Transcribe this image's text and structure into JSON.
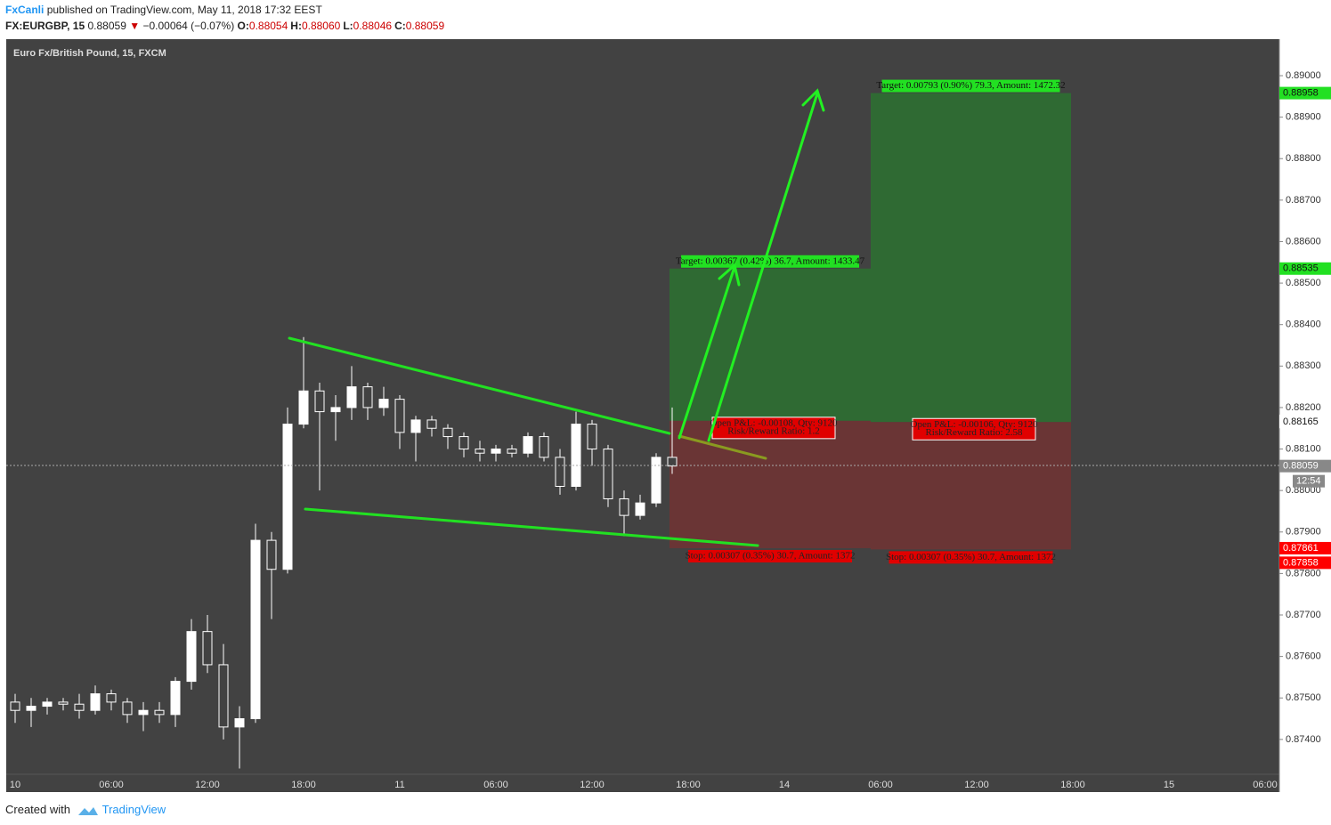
{
  "header": {
    "author": "FxCanli",
    "published": "published on TradingView.com, May 11, 2018 17:32 EEST",
    "symbol": "FX:EURGBP, 15",
    "price": "0.88059",
    "arrow": "▼",
    "change": "−0.00064 (−0.07%)",
    "ohlc": [
      {
        "label": "O:",
        "value": "0.88054"
      },
      {
        "label": "H:",
        "value": "0.88060"
      },
      {
        "label": "L:",
        "value": "0.88046"
      },
      {
        "label": "C:",
        "value": "0.88059"
      }
    ]
  },
  "footer": {
    "created": "Created with",
    "brand": "TradingView"
  },
  "chart_data": {
    "type": "candlestick",
    "legend": "Euro Fx/British Pound, 15, FXCM",
    "countdown": "12:54",
    "up_color": "#ffffff",
    "down_color": "#424242",
    "categories": [
      "10",
      null,
      null,
      null,
      null,
      null,
      "06:00",
      null,
      null,
      null,
      null,
      null,
      "12:00",
      null,
      null,
      null,
      null,
      null,
      "18:00",
      null,
      null,
      null,
      null,
      null,
      "11",
      null,
      null,
      null,
      null,
      null,
      "06:00",
      null,
      null,
      null,
      null,
      null,
      "12:00",
      null,
      null,
      null,
      null,
      null,
      "18:00",
      null,
      null,
      null,
      null,
      null,
      "14",
      null,
      null,
      null,
      null,
      null,
      "06:00",
      null,
      null,
      null,
      null,
      null,
      "12:00",
      null,
      null,
      null,
      null,
      null,
      "18:00",
      null,
      null,
      null,
      null,
      null,
      "15",
      null,
      null,
      null,
      null,
      null,
      "06:00"
    ],
    "open": [
      0.8749,
      0.8747,
      0.8748,
      0.8749,
      0.87485,
      0.8747,
      0.8751,
      0.8749,
      0.8746,
      0.8747,
      0.8746,
      0.8754,
      0.8766,
      0.8758,
      0.8743,
      0.8745,
      0.8788,
      0.8781,
      0.8816,
      0.8824,
      0.8819,
      0.882,
      0.8825,
      0.882,
      0.8822,
      0.8814,
      0.8817,
      0.8815,
      0.8813,
      0.881,
      0.8809,
      0.881,
      0.8809,
      0.8813,
      0.8808,
      0.8801,
      0.8816,
      0.881,
      0.8798,
      0.8794,
      0.8797,
      0.8808,
      null,
      null,
      null,
      null,
      null,
      null,
      null,
      null,
      null,
      null,
      null,
      null,
      null,
      null,
      null,
      null,
      null,
      null,
      null,
      null,
      null,
      null,
      null,
      null,
      null,
      null,
      null,
      null,
      null,
      null,
      null,
      null,
      null,
      null,
      null,
      null,
      null
    ],
    "high": [
      0.8751,
      0.875,
      0.875,
      0.875,
      0.8751,
      0.8753,
      0.8752,
      0.875,
      0.8749,
      0.8749,
      0.8755,
      0.8769,
      0.877,
      0.8763,
      0.8748,
      0.8792,
      0.879,
      0.882,
      0.8837,
      0.8826,
      0.8823,
      0.883,
      0.8826,
      0.8825,
      0.8823,
      0.8818,
      0.8818,
      0.8816,
      0.8814,
      0.8812,
      0.8811,
      0.8811,
      0.8814,
      0.8814,
      0.881,
      0.8819,
      0.8817,
      0.8811,
      0.88,
      0.8799,
      0.8809,
      0.882,
      null,
      null,
      null,
      null,
      null,
      null,
      null,
      null,
      null,
      null,
      null,
      null,
      null,
      null,
      null,
      null,
      null,
      null,
      null,
      null,
      null,
      null,
      null,
      null,
      null,
      null,
      null,
      null,
      null,
      null,
      null,
      null,
      null,
      null,
      null,
      null,
      null
    ],
    "low": [
      0.8744,
      0.8743,
      0.8746,
      0.8747,
      0.8745,
      0.8746,
      0.8747,
      0.8744,
      0.8742,
      0.8744,
      0.8743,
      0.8752,
      0.8756,
      0.874,
      0.8733,
      0.8744,
      0.8769,
      0.878,
      0.8815,
      0.88,
      0.8812,
      0.8817,
      0.8817,
      0.8818,
      0.881,
      0.8807,
      0.8813,
      0.881,
      0.8808,
      0.8807,
      0.8807,
      0.8808,
      0.8808,
      0.8807,
      0.8799,
      0.88,
      0.8806,
      0.8796,
      0.8789,
      0.8793,
      0.8796,
      0.8804,
      null,
      null,
      null,
      null,
      null,
      null,
      null,
      null,
      null,
      null,
      null,
      null,
      null,
      null,
      null,
      null,
      null,
      null,
      null,
      null,
      null,
      null,
      null,
      null,
      null,
      null,
      null,
      null,
      null,
      null,
      null,
      null,
      null,
      null,
      null,
      null,
      null
    ],
    "close": [
      0.8747,
      0.8748,
      0.8749,
      0.87485,
      0.8747,
      0.8751,
      0.8749,
      0.8746,
      0.8747,
      0.8746,
      0.8754,
      0.8766,
      0.8758,
      0.8743,
      0.8745,
      0.8788,
      0.8781,
      0.8816,
      0.8824,
      0.8819,
      0.882,
      0.8825,
      0.882,
      0.8822,
      0.8814,
      0.8817,
      0.8815,
      0.8813,
      0.881,
      0.8809,
      0.881,
      0.8809,
      0.8813,
      0.8808,
      0.8801,
      0.8816,
      0.881,
      0.8798,
      0.8794,
      0.8797,
      0.8808,
      0.88059,
      null,
      null,
      null,
      null,
      null,
      null,
      null,
      null,
      null,
      null,
      null,
      null,
      null,
      null,
      null,
      null,
      null,
      null,
      null,
      null,
      null,
      null,
      null,
      null,
      null,
      null,
      null,
      null,
      null,
      null,
      null,
      null,
      null,
      null,
      null,
      null,
      null
    ],
    "ylim": [
      0.87316,
      0.89088
    ],
    "yticks": [
      {
        "value": 0.874,
        "label": "0.87400"
      },
      {
        "value": 0.875,
        "label": "0.87500"
      },
      {
        "value": 0.876,
        "label": "0.87600"
      },
      {
        "value": 0.877,
        "label": "0.87700"
      },
      {
        "value": 0.878,
        "label": "0.87800"
      },
      {
        "value": 0.879,
        "label": "0.87900"
      },
      {
        "value": 0.88,
        "label": "0.88000"
      },
      {
        "value": 0.881,
        "label": "0.88100"
      },
      {
        "value": 0.882,
        "label": "0.88200"
      },
      {
        "value": 0.883,
        "label": "0.88300"
      },
      {
        "value": 0.884,
        "label": "0.88400"
      },
      {
        "value": 0.885,
        "label": "0.88500"
      },
      {
        "value": 0.886,
        "label": "0.88600"
      },
      {
        "value": 0.887,
        "label": "0.88700"
      },
      {
        "value": 0.888,
        "label": "0.88800"
      },
      {
        "value": 0.889,
        "label": "0.88900"
      },
      {
        "value": 0.89,
        "label": "0.89000"
      }
    ],
    "positions": [
      {
        "entry": 0.88168,
        "target": 0.88535,
        "stop": 0.87861,
        "target_label": "Target: 0.00367 (0.42%) 36.7, Amount: 1433.47",
        "pnl_label": "Open P&L: -0.00108, Qty: 9120",
        "ratio_label": "Risk/Reward Ratio: 1.2",
        "stop_label": "Stop: 0.00307 (0.35%) 30.7, Amount: 1372"
      },
      {
        "entry": 0.88165,
        "target": 0.88958,
        "stop": 0.87858,
        "target_label": "Target: 0.00793 (0.90%) 79.3, Amount: 1472.32",
        "pnl_label": "Open P&L: -0.00106, Qty: 9120",
        "ratio_label": "Risk/Reward Ratio: 2.58",
        "stop_label": "Stop: 0.00307 (0.35%) 30.7, Amount: 1372"
      }
    ]
  }
}
